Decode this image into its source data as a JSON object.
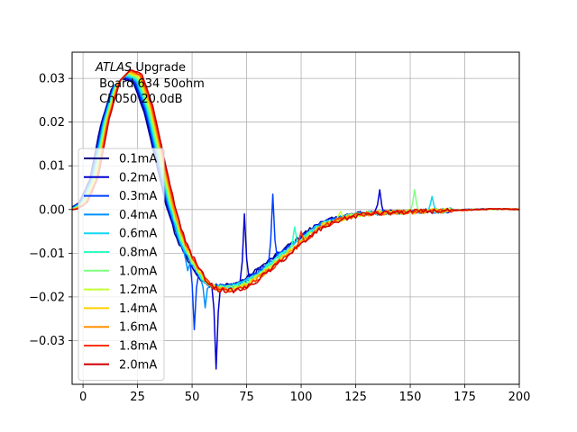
{
  "chart_data": {
    "type": "line",
    "title": "",
    "xlabel": "",
    "ylabel": "",
    "xlim": [
      -5,
      200
    ],
    "ylim": [
      -0.04,
      0.036
    ],
    "xticks": [
      0,
      25,
      50,
      75,
      100,
      125,
      150,
      175,
      200
    ],
    "xtick_labels": [
      "0",
      "25",
      "50",
      "75",
      "100",
      "125",
      "150",
      "175",
      "200"
    ],
    "yticks": [
      -0.03,
      -0.02,
      -0.01,
      0.0,
      0.01,
      0.02,
      0.03
    ],
    "ytick_labels": [
      "−0.03",
      "−0.02",
      "−0.01",
      "0.00",
      "0.01",
      "0.02",
      "0.03"
    ],
    "grid": true,
    "legend_position": "center-left",
    "annotation": {
      "line1_italic": "ATLAS",
      "line1_rest": " Upgrade",
      "line2": " Board 634 50ohm",
      "line3": " Ch050 20.0dB"
    },
    "base_curve": {
      "x": [
        -5,
        0,
        5,
        10,
        15,
        20,
        25,
        30,
        35,
        40,
        45,
        50,
        55,
        60,
        65,
        70,
        75,
        80,
        85,
        90,
        95,
        100,
        105,
        110,
        115,
        120,
        125,
        130,
        135,
        140,
        145,
        150,
        155,
        160,
        165,
        170,
        175,
        180,
        185,
        190,
        195,
        200
      ],
      "y": [
        0.0,
        0.0015,
        0.007,
        0.02,
        0.0285,
        0.031,
        0.03,
        0.023,
        0.012,
        0.001,
        -0.007,
        -0.012,
        -0.016,
        -0.0178,
        -0.018,
        -0.0178,
        -0.0168,
        -0.015,
        -0.013,
        -0.011,
        -0.009,
        -0.007,
        -0.005,
        -0.0035,
        -0.0025,
        -0.0018,
        -0.0012,
        -0.0009,
        -0.0008,
        -0.0007,
        -0.0006,
        -0.0005,
        -0.0004,
        -0.0003,
        -0.0003,
        -0.0002,
        -0.0001,
        0.0,
        0.0001,
        0.0001,
        0.0001,
        0.0
      ]
    },
    "series": [
      {
        "name": "0.1mA",
        "color": "#000080"
      },
      {
        "name": "0.2mA",
        "color": "#0000d0"
      },
      {
        "name": "0.3mA",
        "color": "#0040ff"
      },
      {
        "name": "0.4mA",
        "color": "#0090ff"
      },
      {
        "name": "0.6mA",
        "color": "#10d8f0"
      },
      {
        "name": "0.8mA",
        "color": "#30ffc0"
      },
      {
        "name": "1.0mA",
        "color": "#80ff80"
      },
      {
        "name": "1.2mA",
        "color": "#c0ff30"
      },
      {
        "name": "1.4mA",
        "color": "#ffd000"
      },
      {
        "name": "1.6mA",
        "color": "#ff9000"
      },
      {
        "name": "1.8mA",
        "color": "#ff3000"
      },
      {
        "name": "2.0mA",
        "color": "#d00000"
      }
    ],
    "spikes": [
      {
        "series": 1,
        "x": 61,
        "y": -0.0365
      },
      {
        "series": 2,
        "x": 51,
        "y": -0.0275
      },
      {
        "series": 1,
        "x": 74,
        "y": -0.001
      },
      {
        "series": 2,
        "x": 87,
        "y": 0.0035
      },
      {
        "series": 3,
        "x": 56,
        "y": -0.0225
      },
      {
        "series": 1,
        "x": 136,
        "y": 0.0045
      },
      {
        "series": 6,
        "x": 152,
        "y": 0.0045
      },
      {
        "series": 5,
        "x": 97,
        "y": -0.004
      },
      {
        "series": 4,
        "x": 160,
        "y": 0.003
      },
      {
        "series": 7,
        "x": 118,
        "y": -0.0005
      },
      {
        "series": 3,
        "x": 48,
        "y": -0.014
      },
      {
        "series": 8,
        "x": 110,
        "y": -0.003
      },
      {
        "series": 9,
        "x": 120,
        "y": -0.002
      },
      {
        "series": 10,
        "x": 100,
        "y": -0.005
      },
      {
        "series": 4,
        "x": 36,
        "y": 0.015
      }
    ]
  }
}
